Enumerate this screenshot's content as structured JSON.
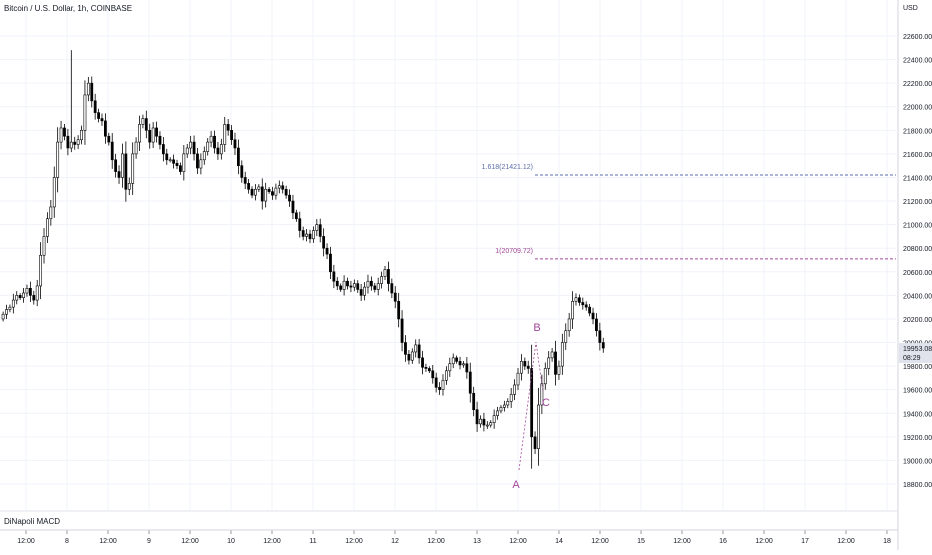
{
  "header": {
    "title": "Bitcoin / U.S. Dollar, 1h, COINBASE"
  },
  "indicator": {
    "label": "DiNapoli MACD"
  },
  "price_axis": {
    "currency": "USD",
    "ticks": [
      "22600.00",
      "22400.00",
      "22200.00",
      "22000.00",
      "21800.00",
      "21600.00",
      "21400.00",
      "21200.00",
      "21000.00",
      "20800.00",
      "20600.00",
      "20400.00",
      "20200.00",
      "20000.00",
      "19800.00",
      "19600.00",
      "19400.00",
      "19200.00",
      "19000.00",
      "18800.00"
    ],
    "current_price": "19953.08",
    "countdown": "08:29"
  },
  "time_axis": {
    "ticks": [
      "12:00",
      "8",
      "12:00",
      "9",
      "12:00",
      "10",
      "12:00",
      "11",
      "12:00",
      "12",
      "12:00",
      "13",
      "12:00",
      "14",
      "12:00",
      "15",
      "12:00",
      "16",
      "12:00",
      "17",
      "12:00",
      "18"
    ]
  },
  "fib_levels": [
    {
      "label": "1.618(21421.12)",
      "price": 21421.12,
      "color": "#5b6ea8"
    },
    {
      "label": "1(20709.72)",
      "price": 20709.72,
      "color": "#a1479a"
    }
  ],
  "wave_labels": [
    {
      "label": "A",
      "color": "#a1479a"
    },
    {
      "label": "B",
      "color": "#a1479a"
    },
    {
      "label": "C",
      "color": "#a1479a"
    }
  ],
  "chart_data": {
    "type": "candlestick",
    "title": "Bitcoin / U.S. Dollar, 1h, COINBASE",
    "ylabel": "USD",
    "ylim": [
      18700,
      22800
    ],
    "grid": true,
    "wave_points": [
      {
        "label": "A",
        "x": "13 12:00",
        "price": 18930
      },
      {
        "label": "B",
        "x": "13 17:00",
        "price": 20060
      },
      {
        "label": "C",
        "x": "13 19:00",
        "price": 19600
      }
    ],
    "closes": [
      20240,
      20280,
      20300,
      20360,
      20400,
      20380,
      20420,
      20460,
      20400,
      20360,
      20480,
      20740,
      20900,
      21050,
      21150,
      21400,
      21700,
      21820,
      21750,
      21650,
      21700,
      21680,
      21720,
      21800,
      22100,
      22200,
      22050,
      21950,
      21900,
      21880,
      21750,
      21700,
      21550,
      21450,
      21400,
      21600,
      21300,
      21350,
      21600,
      21700,
      21850,
      21900,
      21800,
      21700,
      21820,
      21750,
      21680,
      21600,
      21550,
      21550,
      21520,
      21500,
      21450,
      21600,
      21650,
      21700,
      21600,
      21480,
      21550,
      21620,
      21700,
      21750,
      21650,
      21600,
      21680,
      21850,
      21800,
      21720,
      21650,
      21500,
      21400,
      21350,
      21300,
      21250,
      21300,
      21320,
      21200,
      21300,
      21280,
      21250,
      21310,
      21330,
      21300,
      21250,
      21200,
      21100,
      21050,
      20950,
      20900,
      20920,
      20880,
      20950,
      21000,
      20900,
      20800,
      20750,
      20600,
      20520,
      20480,
      20450,
      20520,
      20480,
      20470,
      20500,
      20450,
      20400,
      20470,
      20520,
      20480,
      20450,
      20500,
      20560,
      20620,
      20500,
      20420,
      20350,
      20200,
      20000,
      19900,
      19850,
      19920,
      19980,
      19870,
      19790,
      19780,
      19760,
      19700,
      19620,
      19600,
      19680,
      19760,
      19820,
      19870,
      19840,
      19810,
      19820,
      19750,
      19570,
      19430,
      19310,
      19350,
      19300,
      19300,
      19320,
      19380,
      19420,
      19450,
      19470,
      19500,
      19560,
      19640,
      19740,
      19840,
      19800,
      19780,
      19200,
      19100,
      19470,
      19650,
      19780,
      19870,
      19920,
      19730,
      19800,
      20000,
      20100,
      20200,
      20350,
      20380,
      20340,
      20320,
      20300,
      20250,
      20200,
      20100,
      20000,
      19953
    ]
  }
}
